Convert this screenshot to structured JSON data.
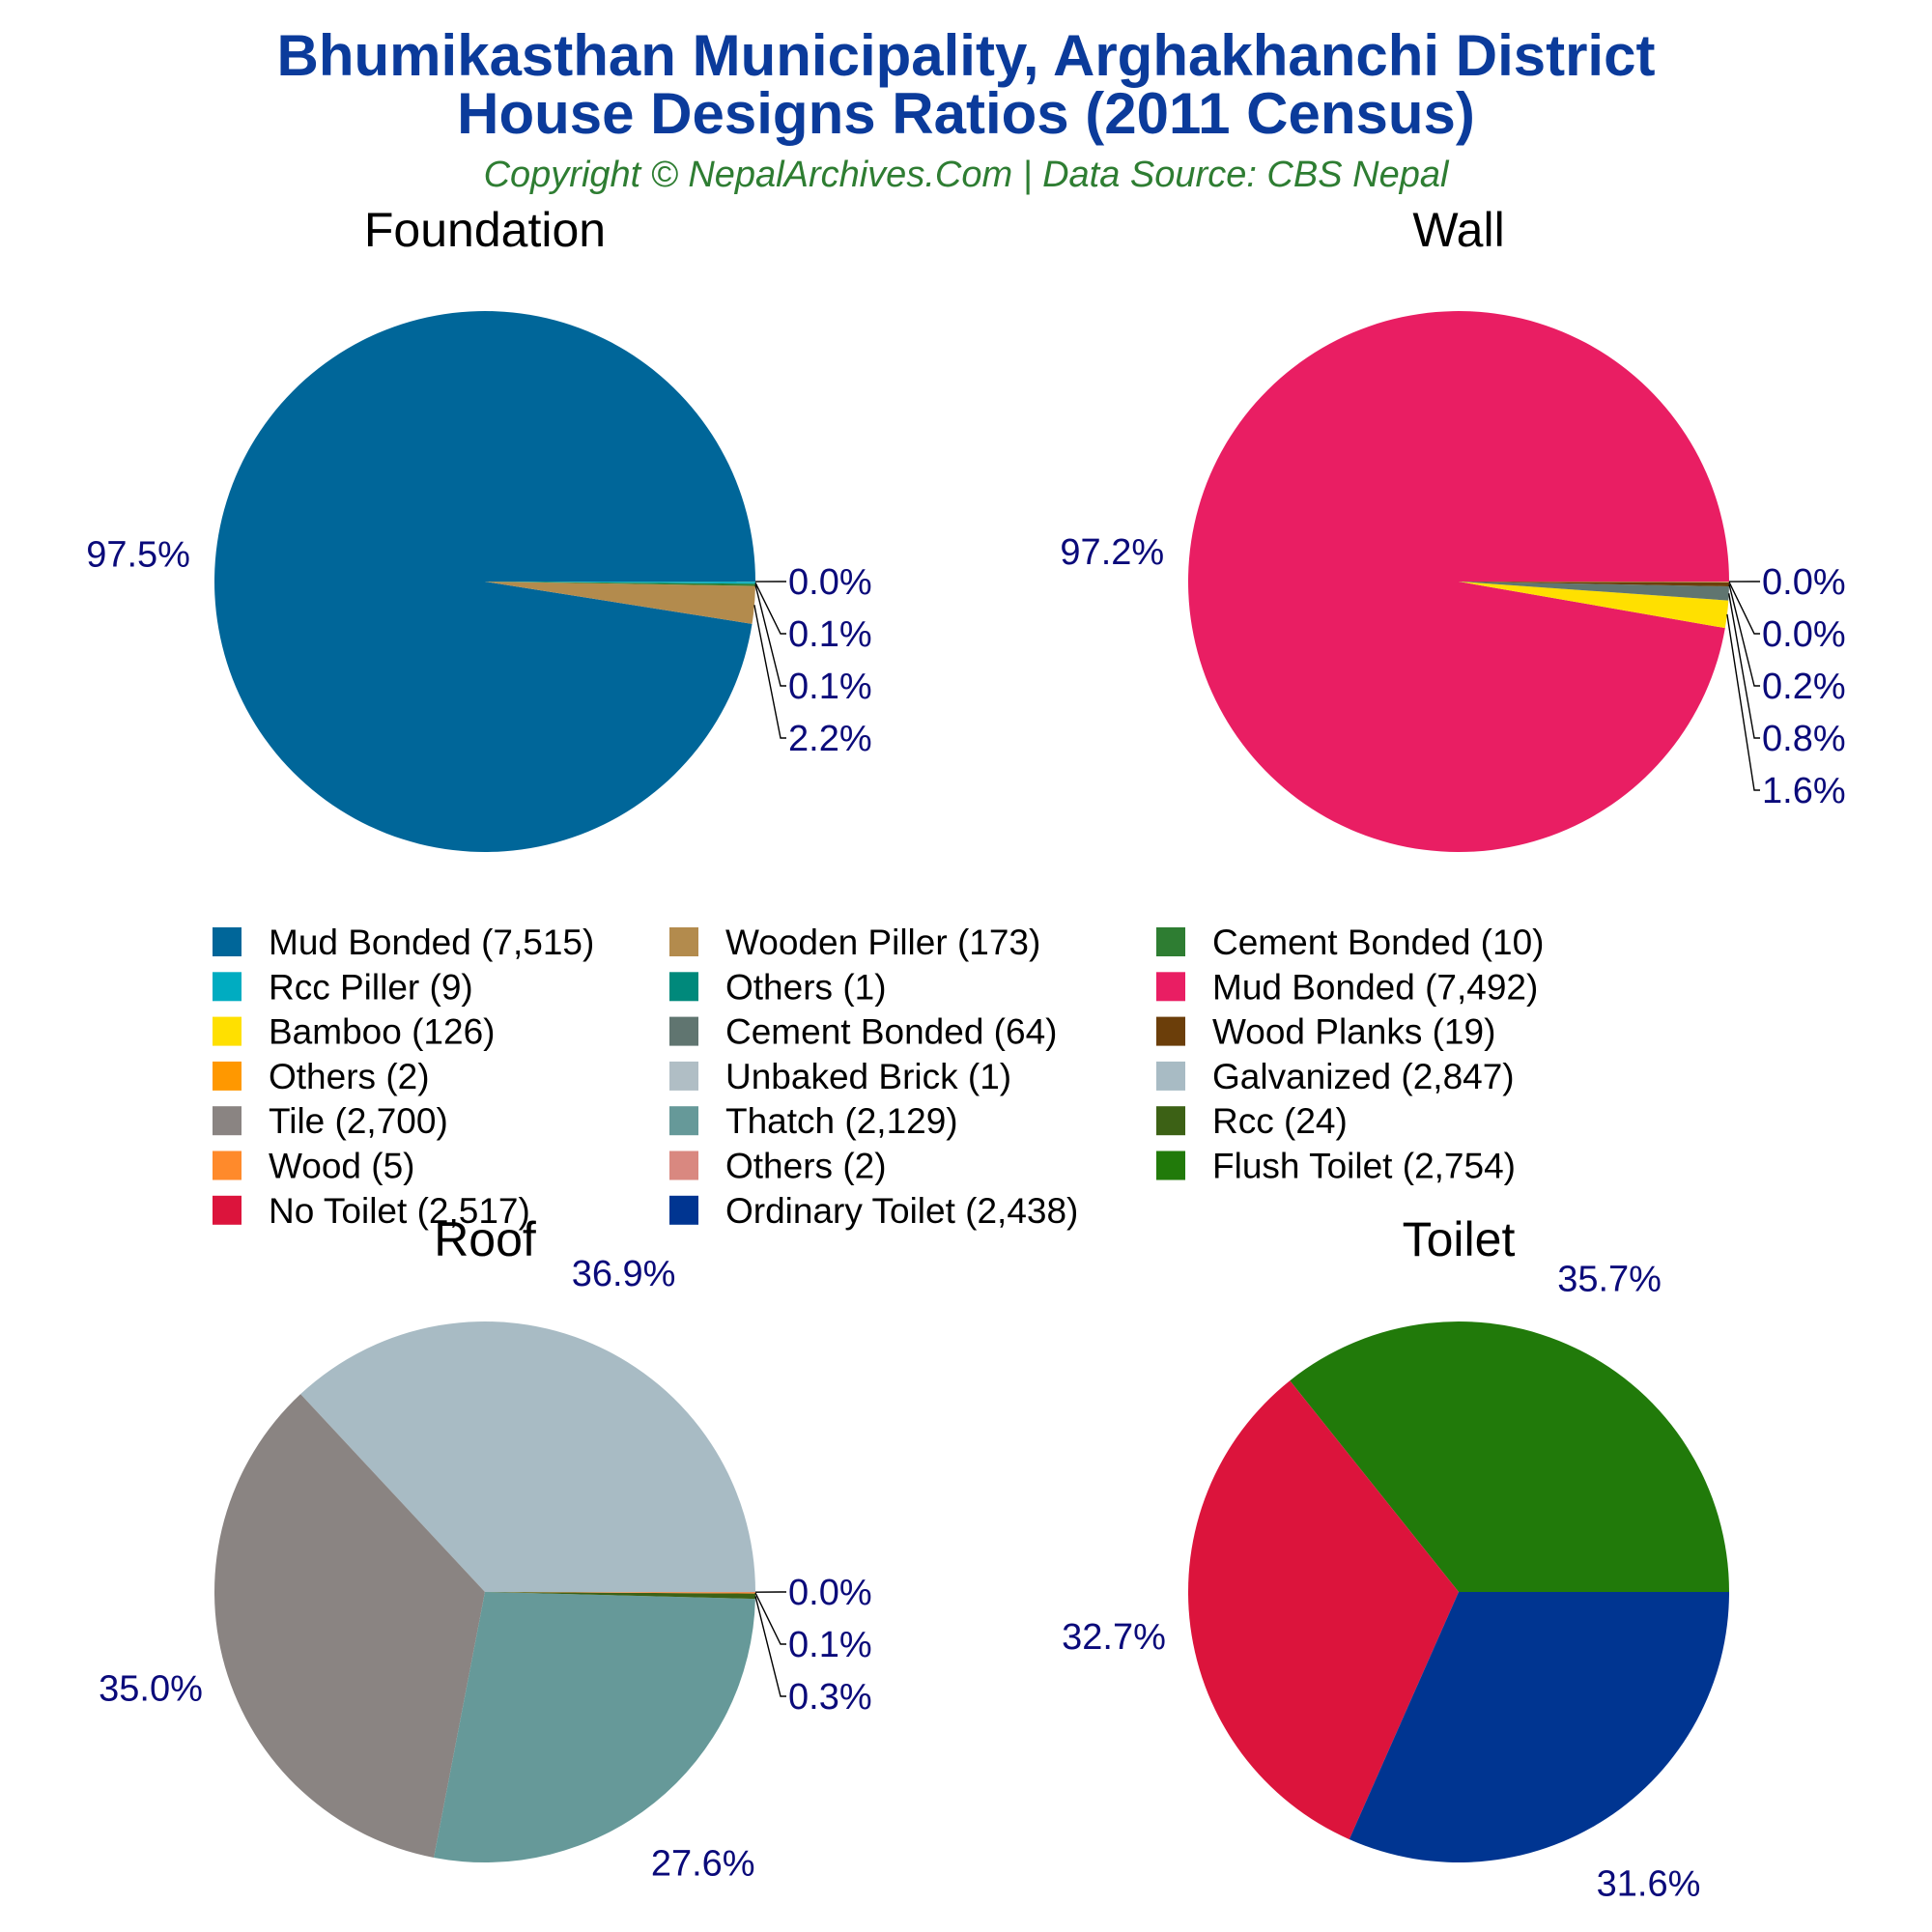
{
  "header": {
    "title_line1": "Bhumikasthan Municipality, Arghakhanchi District",
    "title_line2": "House Designs Ratios (2011 Census)",
    "subtitle": "Copyright © NepalArchives.Com | Data Source: CBS Nepal"
  },
  "chart_data": [
    {
      "type": "pie",
      "title": "Foundation",
      "slices": [
        {
          "label": "Mud Bonded",
          "value": 7515,
          "percent_label": "97.5%",
          "color": "#006699"
        },
        {
          "label": "Wooden Piller",
          "value": 173,
          "percent_label": "2.2%",
          "color": "#b38b4d"
        },
        {
          "label": "Cement Bonded",
          "value": 10,
          "percent_label": "0.1%",
          "color": "#2e7d32"
        },
        {
          "label": "Rcc Piller",
          "value": 9,
          "percent_label": "0.1%",
          "color": "#00acc1"
        },
        {
          "label": "Others",
          "value": 1,
          "percent_label": "0.0%",
          "color": "#00897b"
        }
      ]
    },
    {
      "type": "pie",
      "title": "Wall",
      "slices": [
        {
          "label": "Mud Bonded",
          "value": 7492,
          "percent_label": "97.2%",
          "color": "#e91e63"
        },
        {
          "label": "Bamboo",
          "value": 126,
          "percent_label": "1.6%",
          "color": "#ffe000"
        },
        {
          "label": "Cement Bonded",
          "value": 64,
          "percent_label": "0.8%",
          "color": "#607570"
        },
        {
          "label": "Wood Planks",
          "value": 19,
          "percent_label": "0.2%",
          "color": "#6b3e0a"
        },
        {
          "label": "Others",
          "value": 2,
          "percent_label": "0.0%",
          "color": "#ff9800"
        },
        {
          "label": "Unbaked Brick",
          "value": 1,
          "percent_label": "0.0%",
          "color": "#b0bec5"
        }
      ]
    },
    {
      "type": "pie",
      "title": "Roof",
      "slices": [
        {
          "label": "Galvanized",
          "value": 2847,
          "percent_label": "36.9%",
          "color": "#a8bbc4"
        },
        {
          "label": "Tile",
          "value": 2700,
          "percent_label": "35.0%",
          "color": "#8a8482"
        },
        {
          "label": "Thatch",
          "value": 2129,
          "percent_label": "27.6%",
          "color": "#669999"
        },
        {
          "label": "Rcc",
          "value": 24,
          "percent_label": "0.3%",
          "color": "#3c6115"
        },
        {
          "label": "Wood",
          "value": 5,
          "percent_label": "0.1%",
          "color": "#ff8a2b"
        },
        {
          "label": "Others",
          "value": 2,
          "percent_label": "0.0%",
          "color": "#d98880"
        }
      ]
    },
    {
      "type": "pie",
      "title": "Toilet",
      "slices": [
        {
          "label": "Flush Toilet",
          "value": 2754,
          "percent_label": "35.7%",
          "color": "#217a0a"
        },
        {
          "label": "No Toilet",
          "value": 2517,
          "percent_label": "32.7%",
          "color": "#dc143c"
        },
        {
          "label": "Ordinary Toilet",
          "value": 2438,
          "percent_label": "31.6%",
          "color": "#003591"
        }
      ]
    }
  ],
  "legend": {
    "placement": "center",
    "entries": [
      {
        "text": "Mud Bonded (7,515)",
        "color": "#006699"
      },
      {
        "text": "Wooden Piller (173)",
        "color": "#b38b4d"
      },
      {
        "text": "Cement Bonded (10)",
        "color": "#2e7d32"
      },
      {
        "text": "Rcc Piller (9)",
        "color": "#00acc1"
      },
      {
        "text": "Others (1)",
        "color": "#00897b"
      },
      {
        "text": "Mud Bonded (7,492)",
        "color": "#e91e63"
      },
      {
        "text": "Bamboo (126)",
        "color": "#ffe000"
      },
      {
        "text": "Cement Bonded (64)",
        "color": "#607570"
      },
      {
        "text": "Wood Planks (19)",
        "color": "#6b3e0a"
      },
      {
        "text": "Others (2)",
        "color": "#ff9800"
      },
      {
        "text": "Unbaked Brick (1)",
        "color": "#b0bec5"
      },
      {
        "text": "Galvanized (2,847)",
        "color": "#a8bbc4"
      },
      {
        "text": "Tile (2,700)",
        "color": "#8a8482"
      },
      {
        "text": "Thatch (2,129)",
        "color": "#669999"
      },
      {
        "text": "Rcc (24)",
        "color": "#3c6115"
      },
      {
        "text": "Wood (5)",
        "color": "#ff8a2b"
      },
      {
        "text": "Others (2)",
        "color": "#d98880"
      },
      {
        "text": "Flush Toilet (2,754)",
        "color": "#217a0a"
      },
      {
        "text": "No Toilet (2,517)",
        "color": "#dc143c"
      },
      {
        "text": "Ordinary Toilet (2,438)",
        "color": "#003591"
      }
    ]
  }
}
